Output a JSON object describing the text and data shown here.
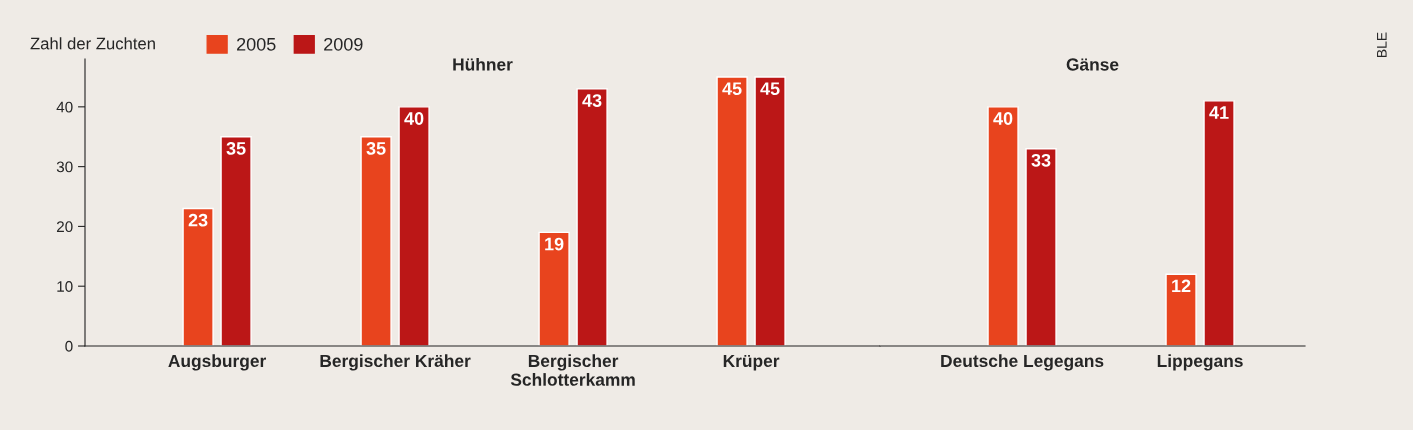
{
  "chart_data": [
    {
      "type": "bar",
      "title": "Hühner",
      "ylabel": "Zahl der Zuchten",
      "categories": [
        "Augsburger",
        "Bergischer Kräher",
        "Bergischer\nSchlotterkamm",
        "Krüper"
      ],
      "series": [
        {
          "name": "2005",
          "color": "#e8441e",
          "values": [
            23,
            35,
            19,
            45
          ]
        },
        {
          "name": "2009",
          "color": "#bb1717",
          "values": [
            35,
            40,
            43,
            45
          ]
        }
      ],
      "ylim": [
        0,
        48
      ],
      "yticks": [
        0,
        10,
        20,
        30,
        40
      ],
      "data_labels": true,
      "legend": "top left",
      "grid": false
    },
    {
      "type": "bar",
      "title": "Gänse",
      "categories": [
        "Deutsche Legegans",
        "Lippegans"
      ],
      "series": [
        {
          "name": "2005",
          "color": "#e8441e",
          "values": [
            40,
            12
          ]
        },
        {
          "name": "2009",
          "color": "#bb1717",
          "values": [
            33,
            41
          ]
        }
      ],
      "ylim": [
        0,
        48
      ],
      "yticks": [
        0,
        10,
        20,
        30,
        40
      ],
      "tick_labels": "x",
      "data_labels": true,
      "grid": false,
      "annotations": [
        "BLE"
      ]
    }
  ]
}
